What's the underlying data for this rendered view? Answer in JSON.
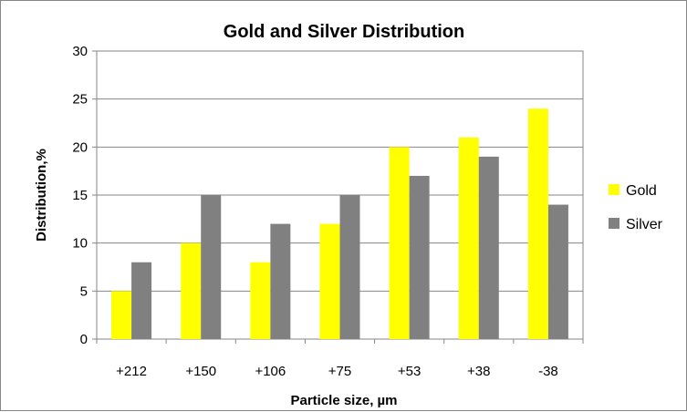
{
  "chart_data": {
    "type": "bar",
    "title": "Gold and Silver Distribution",
    "xlabel": "Particle size, µm",
    "ylabel": "Distribution,%",
    "categories": [
      "+212",
      "+150",
      "+106",
      "+75",
      "+53",
      "+38",
      "-38"
    ],
    "series": [
      {
        "name": "Gold",
        "color": "#ffff00",
        "values": [
          5,
          10,
          8,
          12,
          20,
          21,
          24
        ]
      },
      {
        "name": "Silver",
        "color": "#808080",
        "values": [
          8,
          15,
          12,
          15,
          17,
          19,
          14
        ]
      }
    ],
    "ylim": [
      0,
      30
    ],
    "yticks": [
      "0",
      "5",
      "10",
      "15",
      "20",
      "25",
      "30"
    ],
    "grid": true,
    "legend_position": "right"
  }
}
